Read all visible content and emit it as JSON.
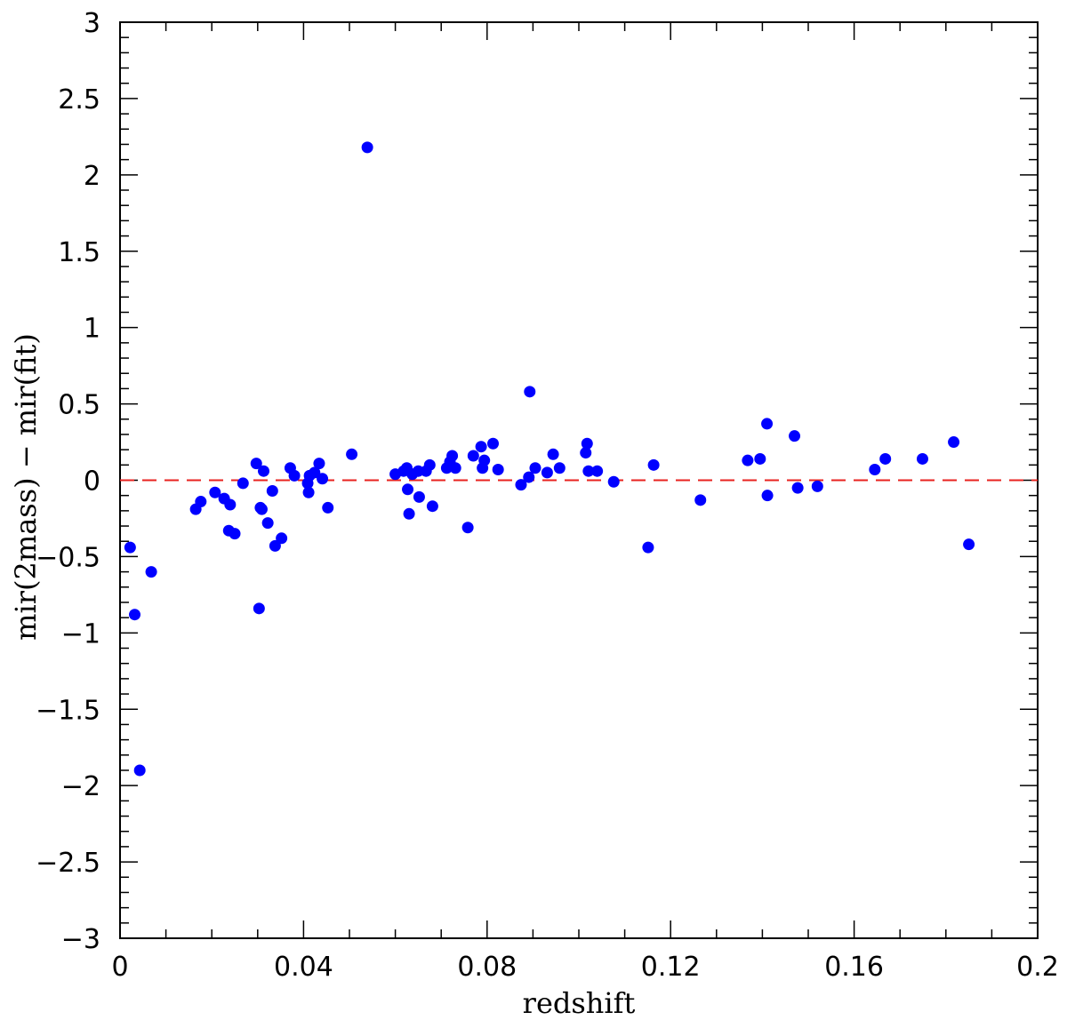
{
  "chart_data": {
    "type": "scatter",
    "xlabel": "redshift",
    "ylabel": "mir(2mass) − mir(fit)",
    "xlim": [
      0,
      0.2
    ],
    "ylim": [
      -3,
      3
    ],
    "x_ticks": [
      "0",
      "0.04",
      "0.08",
      "0.12",
      "0.16",
      "0.2"
    ],
    "y_ticks": [
      "−3",
      "−2.5",
      "−2",
      "−1.5",
      "−1",
      "−0.5",
      "0",
      "0.5",
      "1",
      "1.5",
      "2",
      "2.5",
      "3"
    ],
    "grid": false,
    "reference_line": {
      "y": 0,
      "style": "dashed",
      "color": "#e8221f"
    },
    "point_color": "#0000ff",
    "points": [
      [
        0.0022,
        -0.44
      ],
      [
        0.0032,
        -0.88
      ],
      [
        0.0043,
        -1.9
      ],
      [
        0.0068,
        -0.6
      ],
      [
        0.0165,
        -0.19
      ],
      [
        0.0176,
        -0.14
      ],
      [
        0.0207,
        -0.08
      ],
      [
        0.0227,
        -0.12
      ],
      [
        0.0237,
        -0.33
      ],
      [
        0.024,
        -0.16
      ],
      [
        0.025,
        -0.35
      ],
      [
        0.0268,
        -0.02
      ],
      [
        0.0297,
        0.11
      ],
      [
        0.0303,
        -0.84
      ],
      [
        0.0306,
        -0.18
      ],
      [
        0.0309,
        -0.19
      ],
      [
        0.0313,
        0.06
      ],
      [
        0.0322,
        -0.28
      ],
      [
        0.0332,
        -0.07
      ],
      [
        0.0338,
        -0.43
      ],
      [
        0.0352,
        -0.38
      ],
      [
        0.0371,
        0.08
      ],
      [
        0.038,
        0.03
      ],
      [
        0.0409,
        -0.02
      ],
      [
        0.0411,
        -0.08
      ],
      [
        0.0413,
        0.03
      ],
      [
        0.0424,
        0.05
      ],
      [
        0.0434,
        0.11
      ],
      [
        0.0441,
        0.01
      ],
      [
        0.0453,
        -0.18
      ],
      [
        0.0505,
        0.17
      ],
      [
        0.0539,
        2.18
      ],
      [
        0.06,
        0.04
      ],
      [
        0.0618,
        0.06
      ],
      [
        0.0625,
        0.08
      ],
      [
        0.0627,
        -0.06
      ],
      [
        0.063,
        -0.22
      ],
      [
        0.0637,
        0.04
      ],
      [
        0.065,
        0.06
      ],
      [
        0.0652,
        -0.11
      ],
      [
        0.0667,
        0.06
      ],
      [
        0.0675,
        0.1
      ],
      [
        0.0681,
        -0.17
      ],
      [
        0.0712,
        0.08
      ],
      [
        0.0719,
        0.12
      ],
      [
        0.0724,
        0.16
      ],
      [
        0.0731,
        0.08
      ],
      [
        0.0758,
        -0.31
      ],
      [
        0.077,
        0.16
      ],
      [
        0.0787,
        0.22
      ],
      [
        0.079,
        0.08
      ],
      [
        0.0794,
        0.13
      ],
      [
        0.0813,
        0.24
      ],
      [
        0.0824,
        0.07
      ],
      [
        0.0874,
        -0.03
      ],
      [
        0.0891,
        0.02
      ],
      [
        0.0893,
        0.58
      ],
      [
        0.0905,
        0.08
      ],
      [
        0.0931,
        0.05
      ],
      [
        0.0944,
        0.17
      ],
      [
        0.0958,
        0.08
      ],
      [
        0.1015,
        0.18
      ],
      [
        0.1018,
        0.24
      ],
      [
        0.1021,
        0.06
      ],
      [
        0.104,
        0.06
      ],
      [
        0.1076,
        -0.01
      ],
      [
        0.1151,
        -0.44
      ],
      [
        0.1163,
        0.1
      ],
      [
        0.1265,
        -0.13
      ],
      [
        0.1368,
        0.13
      ],
      [
        0.1395,
        0.14
      ],
      [
        0.141,
        0.37
      ],
      [
        0.1411,
        -0.1
      ],
      [
        0.147,
        0.29
      ],
      [
        0.1477,
        -0.05
      ],
      [
        0.152,
        -0.04
      ],
      [
        0.1645,
        0.07
      ],
      [
        0.1668,
        0.14
      ],
      [
        0.1749,
        0.14
      ],
      [
        0.1817,
        0.25
      ],
      [
        0.185,
        -0.42
      ]
    ]
  }
}
